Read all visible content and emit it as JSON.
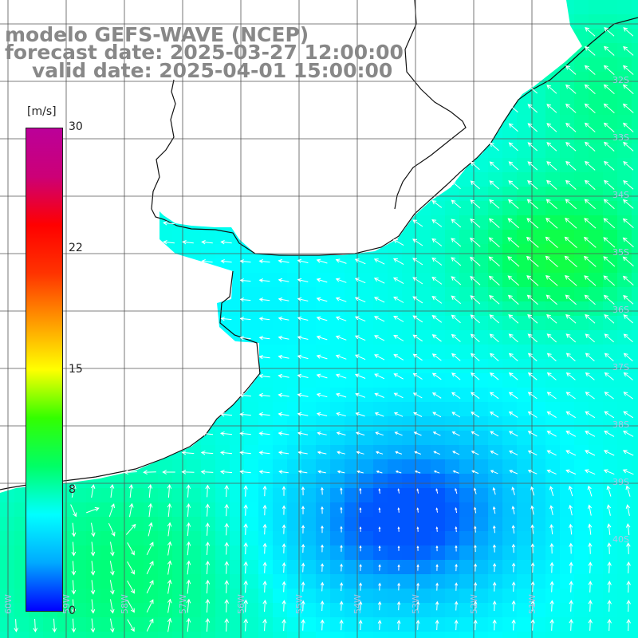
{
  "title": {
    "line1": "modelo GEFS-WAVE (NCEP)",
    "line2": "forecast date: 2025-03-27 12:00:00",
    "line3": "valid date: 2025-04-01 15:00:00"
  },
  "colorbar": {
    "unit": "[m/s]",
    "min": 0,
    "max": 30,
    "tick_labels": [
      "30",
      "22",
      "15",
      "8",
      "0"
    ],
    "tick_values": [
      30,
      22.5,
      15,
      7.5,
      0
    ],
    "colors": [
      "#0000ff",
      "#00aaff",
      "#00ffff",
      "#00ff66",
      "#33ff00",
      "#ffff00",
      "#ff9900",
      "#ff3300",
      "#ff0000",
      "#cc0077",
      "#bb0099"
    ]
  },
  "map": {
    "lat_labels": [
      "32S",
      "33S",
      "34S",
      "35S",
      "36S",
      "37S",
      "38S",
      "39S",
      "40S"
    ],
    "lon_labels": [
      "60W",
      "59W",
      "58W",
      "57W",
      "56W",
      "55W",
      "54W",
      "53W",
      "52W",
      "51W"
    ],
    "gridlines": true,
    "land_color": "#ffffff",
    "arrow_color": "#ffffff"
  },
  "chart_data": {
    "type": "heatmap",
    "variable": "wind speed",
    "unit": "m/s",
    "range": [
      0,
      30
    ],
    "observed_range_approx": [
      2,
      10
    ],
    "region": "Río de la Plata estuary and Uruguay–southern Brazil coast",
    "pattern": "weakest winds (~2-3 m/s) in a center-south patch offshore; stronger (~8-10 m/s) toward the north-east Brazilian coast and the south-west corner; arrows mostly point north-west in the north-east sector and south in the south-west sector"
  }
}
